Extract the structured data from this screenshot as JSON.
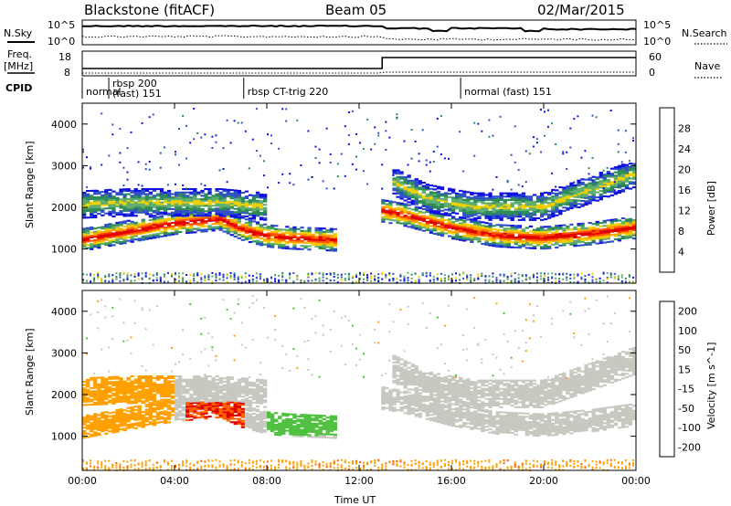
{
  "header": {
    "station": "Blackstone (fitACF)",
    "beam": "Beam 05",
    "date": "02/Mar/2015"
  },
  "top_panels": {
    "nsky_label": "N.Sky",
    "nsearch_label": "N.Search",
    "noise_ticks": [
      "10^5",
      "10^0"
    ],
    "freq_label_1": "Freq.",
    "freq_label_2": "[MHz]",
    "freq_ticks": [
      "18",
      "8"
    ],
    "nave_label": "Nave",
    "nave_ticks": [
      "60",
      "0"
    ],
    "cpid_label": "CPID",
    "cpid_segments": [
      {
        "start_h": 0.0,
        "end_h": 1.15,
        "lines": [
          "normal"
        ]
      },
      {
        "start_h": 1.15,
        "end_h": 7.0,
        "lines": [
          "rbsp 200",
          "(fast) 151"
        ]
      },
      {
        "start_h": 7.0,
        "end_h": 16.4,
        "lines": [
          "rbsp CT-trig 220"
        ]
      },
      {
        "start_h": 16.4,
        "end_h": 24.0,
        "lines": [
          "normal (fast) 151"
        ]
      }
    ],
    "freq_step_h": 13.0
  },
  "chart_data": [
    {
      "type": "heatmap",
      "title": "Power",
      "xlabel": "",
      "ylabel": "Slant Range [km]",
      "xlim": [
        0,
        24
      ],
      "ylim": [
        180,
        4500
      ],
      "x_ticks": [
        0,
        4,
        8,
        12,
        16,
        20,
        24
      ],
      "y_ticks": [
        1000,
        2000,
        3000,
        4000
      ],
      "colorbar": {
        "label": "Power [dB]",
        "ticks": [
          "4",
          "8",
          "12",
          "16",
          "20",
          "24",
          "28"
        ],
        "colors": [
          "#1010e0",
          "#3050c8",
          "#2e8b57",
          "#5fae6f",
          "#f0d000",
          "#ffa500",
          "#ff5000",
          "#e00000"
        ]
      },
      "echo_bands": [
        {
          "name": "main-near",
          "x": [
            0.0,
            2.0,
            4.0,
            6.0,
            7.0,
            8.0,
            9.0,
            11.0,
            12.0,
            13.0,
            14.0,
            16.0,
            18.0,
            20.0,
            22.0,
            24.0
          ],
          "y_km": [
            1200,
            1400,
            1600,
            1700,
            1450,
            1300,
            1250,
            1200,
            null,
            1900,
            1800,
            1500,
            1300,
            1250,
            1350,
            1500
          ],
          "strength": "high"
        },
        {
          "name": "main-far",
          "x": [
            0.0,
            2.0,
            4.0,
            6.0,
            8.0,
            12.0,
            13.5,
            15.0,
            17.0,
            20.0,
            24.0
          ],
          "y_km": [
            2050,
            2100,
            2100,
            2100,
            2000,
            null,
            2600,
            2200,
            2000,
            2000,
            2800
          ],
          "strength": "medium"
        }
      ]
    },
    {
      "type": "heatmap",
      "title": "Velocity",
      "xlabel": "Time UT",
      "ylabel": "Slant Range [km]",
      "xlim": [
        0,
        24
      ],
      "ylim": [
        180,
        4500
      ],
      "x_ticks": [
        0,
        4,
        8,
        12,
        16,
        20,
        24
      ],
      "x_tick_labels": [
        "00:00",
        "04:00",
        "08:00",
        "12:00",
        "16:00",
        "20:00",
        "00:00"
      ],
      "y_ticks": [
        1000,
        2000,
        3000,
        4000
      ],
      "colorbar": {
        "label": "Velocity [m s^-1]",
        "ticks": [
          "200",
          "100",
          "50",
          "15",
          "-15",
          "-50",
          "-100",
          "-200"
        ],
        "colors": [
          "#1f2fd0",
          "#2a7a4a",
          "#50c040",
          "#c8c8c0",
          "#c8c8c0",
          "#ffa000",
          "#ff6000",
          "#e00000"
        ]
      },
      "velocity_regions": [
        {
          "x": [
            0.2,
            3.6
          ],
          "y_km": [
            1900,
            2500
          ],
          "vel_ms": -50
        },
        {
          "x": [
            4.0,
            6.8
          ],
          "y_km": [
            1600,
            2100
          ],
          "vel_ms": 0
        },
        {
          "x": [
            4.5,
            7.0
          ],
          "y_km": [
            900,
            1600
          ],
          "vel_ms": -150
        },
        {
          "x": [
            8.0,
            11.0
          ],
          "y_km": [
            1200,
            1500
          ],
          "vel_ms": 60
        },
        {
          "x": [
            13.0,
            24.0
          ],
          "y_km": [
            1300,
            2200
          ],
          "vel_ms": 0
        }
      ]
    }
  ]
}
